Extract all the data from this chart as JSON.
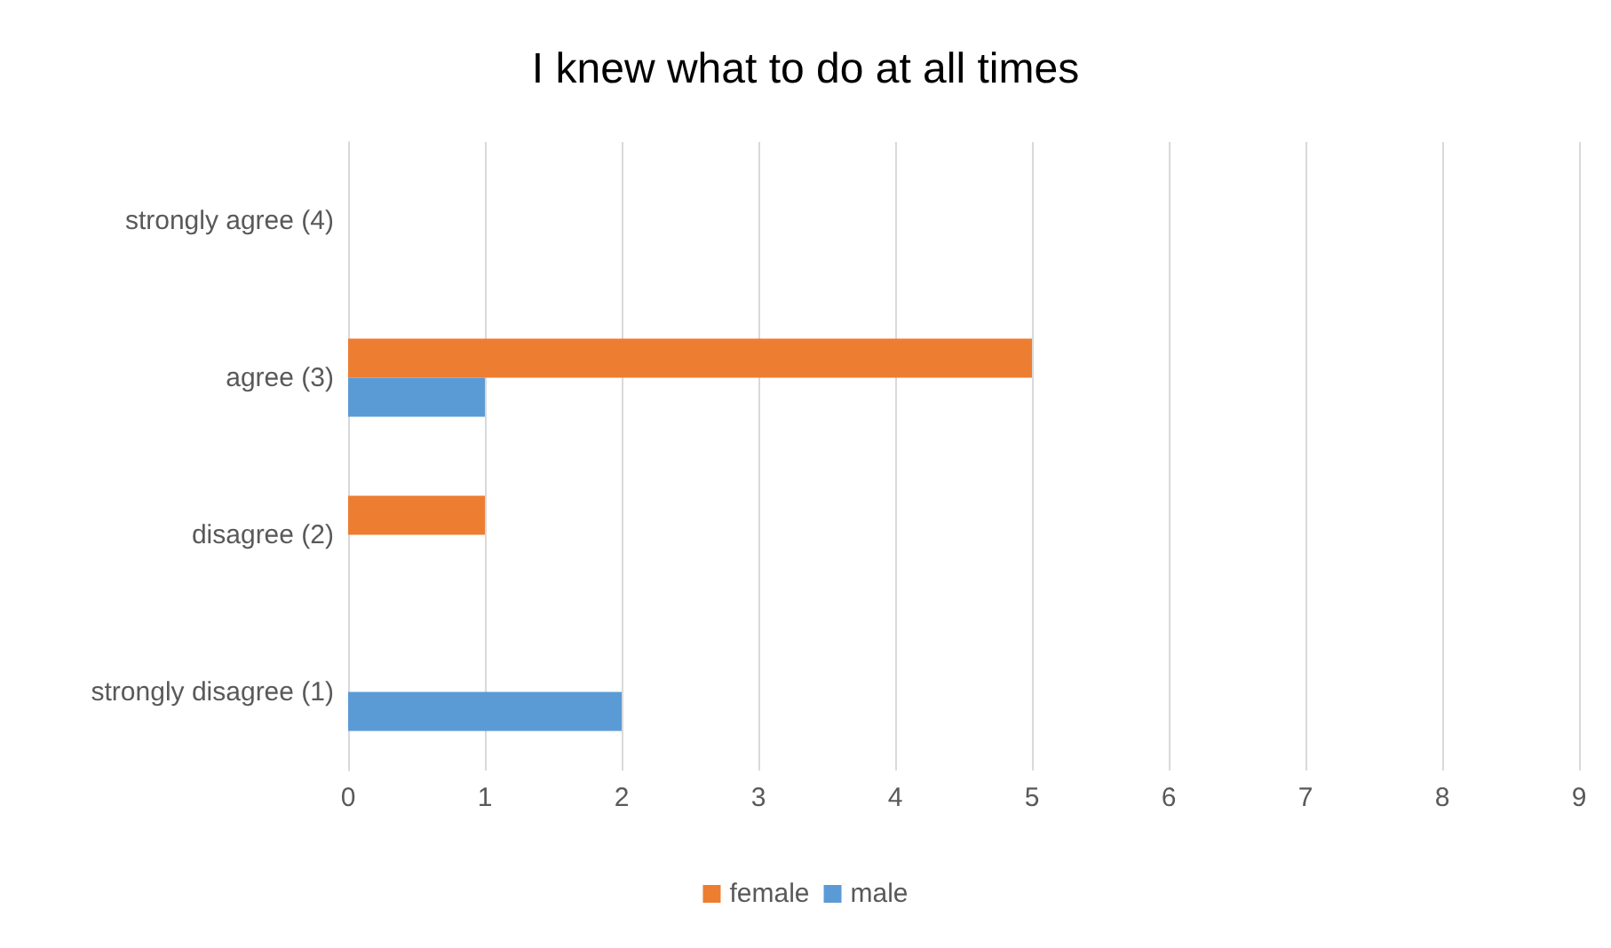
{
  "chart_data": {
    "type": "bar",
    "orientation": "horizontal",
    "title": "I knew what to do at all times",
    "categories": [
      "strongly agree (4)",
      "agree (3)",
      "disagree (2)",
      "strongly disagree (1)"
    ],
    "series": [
      {
        "name": "female",
        "color": "#ed7d31",
        "values": [
          0,
          5,
          1,
          0
        ]
      },
      {
        "name": "male",
        "color": "#5b9bd5",
        "values": [
          0,
          1,
          0,
          2
        ]
      }
    ],
    "xlim": [
      0,
      9
    ],
    "xticks": [
      0,
      1,
      2,
      3,
      4,
      5,
      6,
      7,
      8,
      9
    ],
    "grid": "x",
    "legend": "bottom"
  }
}
